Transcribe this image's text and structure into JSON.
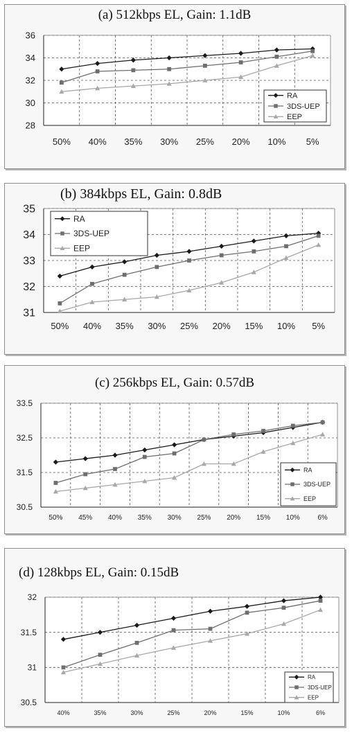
{
  "chart_data": [
    {
      "type": "line",
      "title": "(a) 512kbps EL, Gain: 1.1dB",
      "xlabel": "",
      "ylabel": "",
      "categories": [
        "50%",
        "40%",
        "35%",
        "30%",
        "25%",
        "20%",
        "10%",
        "5%"
      ],
      "yticks": [
        "28",
        "30",
        "32",
        "34",
        "36"
      ],
      "ylim": [
        28,
        36
      ],
      "grid": true,
      "legend_position": "bottom-right",
      "series": [
        {
          "name": "RA",
          "marker": "diamond",
          "color": "#1a1a1a",
          "values": [
            33.0,
            33.5,
            33.8,
            34.0,
            34.2,
            34.4,
            34.7,
            34.8
          ]
        },
        {
          "name": "3DS-UEP",
          "marker": "square",
          "color": "#6e6e6e",
          "values": [
            31.8,
            32.8,
            32.9,
            33.0,
            33.3,
            33.6,
            34.1,
            34.6
          ]
        },
        {
          "name": "EEP",
          "marker": "triangle",
          "color": "#a8a8a8",
          "values": [
            31.0,
            31.3,
            31.5,
            31.7,
            32.0,
            32.3,
            33.3,
            34.2
          ]
        }
      ]
    },
    {
      "type": "line",
      "title": "(b) 384kbps EL, Gain: 0.8dB",
      "xlabel": "",
      "ylabel": "",
      "categories": [
        "50%",
        "40%",
        "35%",
        "30%",
        "25%",
        "20%",
        "15%",
        "10%",
        "5%"
      ],
      "yticks": [
        "31",
        "32",
        "33",
        "34",
        "35"
      ],
      "ylim": [
        31,
        35
      ],
      "grid": true,
      "legend_position": "top-left",
      "series": [
        {
          "name": "RA",
          "marker": "diamond",
          "color": "#1a1a1a",
          "values": [
            32.4,
            32.75,
            32.95,
            33.2,
            33.35,
            33.55,
            33.75,
            33.95,
            34.05
          ]
        },
        {
          "name": "3DS-UEP",
          "marker": "square",
          "color": "#6e6e6e",
          "values": [
            31.35,
            32.1,
            32.45,
            32.75,
            33.0,
            33.2,
            33.35,
            33.55,
            33.95
          ]
        },
        {
          "name": "EEP",
          "marker": "triangle",
          "color": "#a8a8a8",
          "values": [
            31.05,
            31.4,
            31.5,
            31.6,
            31.85,
            32.15,
            32.55,
            33.1,
            33.6
          ]
        }
      ]
    },
    {
      "type": "line",
      "title": "(c) 256kbps EL, Gain: 0.57dB",
      "xlabel": "",
      "ylabel": "",
      "categories": [
        "50%",
        "45%",
        "40%",
        "35%",
        "30%",
        "25%",
        "20%",
        "15%",
        "10%",
        "6%"
      ],
      "yticks": [
        "30.5",
        "31.5",
        "32.5",
        "33.5"
      ],
      "ylim": [
        30.5,
        33.5
      ],
      "grid": true,
      "legend_position": "bottom-right",
      "series": [
        {
          "name": "RA",
          "marker": "diamond",
          "color": "#1a1a1a",
          "values": [
            31.8,
            31.9,
            32.0,
            32.15,
            32.3,
            32.45,
            32.55,
            32.65,
            32.8,
            32.95
          ]
        },
        {
          "name": "3DS-UEP",
          "marker": "square",
          "color": "#6e6e6e",
          "values": [
            31.2,
            31.45,
            31.6,
            31.95,
            32.05,
            32.45,
            32.6,
            32.7,
            32.85,
            32.95
          ]
        },
        {
          "name": "EEP",
          "marker": "triangle",
          "color": "#a8a8a8",
          "values": [
            30.95,
            31.05,
            31.15,
            31.25,
            31.35,
            31.75,
            31.75,
            32.1,
            32.35,
            32.6
          ]
        }
      ]
    },
    {
      "type": "line",
      "title": "(d) 128kbps EL, Gain: 0.15dB",
      "xlabel": "",
      "ylabel": "",
      "categories": [
        "40%",
        "35%",
        "30%",
        "25%",
        "20%",
        "15%",
        "10%",
        "6%"
      ],
      "yticks": [
        "30.5",
        "31",
        "31.5",
        "32"
      ],
      "ylim": [
        30.5,
        32
      ],
      "grid": true,
      "legend_position": "bottom-right",
      "series": [
        {
          "name": "RA",
          "marker": "diamond",
          "color": "#1a1a1a",
          "values": [
            31.4,
            31.5,
            31.6,
            31.7,
            31.8,
            31.87,
            31.95,
            32.0
          ]
        },
        {
          "name": "3DS-UEP",
          "marker": "square",
          "color": "#6e6e6e",
          "values": [
            31.0,
            31.18,
            31.35,
            31.53,
            31.55,
            31.78,
            31.85,
            31.95
          ]
        },
        {
          "name": "EEP",
          "marker": "triangle",
          "color": "#a8a8a8",
          "values": [
            30.93,
            31.05,
            31.17,
            31.28,
            31.38,
            31.48,
            31.62,
            31.82
          ]
        }
      ]
    }
  ]
}
